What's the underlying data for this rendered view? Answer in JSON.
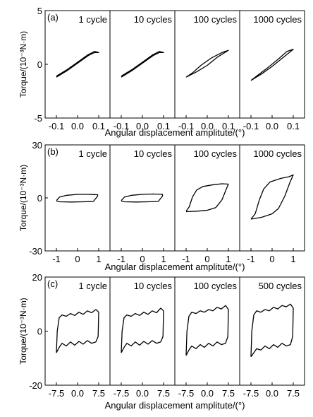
{
  "y_axis_label": "Torque/(10⁻³N·m)",
  "chart_data": [
    {
      "type": "line",
      "panel_label": "(a)",
      "xlabel": "Angular displacement amplitute/(°)",
      "ylim": [
        -5,
        5
      ],
      "y_ticks": [
        "5",
        "0",
        "-5"
      ],
      "xlim": [
        -0.12,
        0.12
      ],
      "x_ticks": [
        "-0.1",
        "0.0",
        "0.1"
      ],
      "subplots": [
        {
          "title": "1 cycle",
          "points": [
            [
              -0.1,
              -1.1
            ],
            [
              -0.05,
              -0.5
            ],
            [
              0.0,
              0.2
            ],
            [
              0.05,
              0.9
            ],
            [
              0.08,
              1.2
            ],
            [
              0.1,
              1.1
            ],
            [
              0.08,
              1.1
            ],
            [
              0.05,
              0.8
            ],
            [
              0.0,
              0.1
            ],
            [
              -0.05,
              -0.6
            ],
            [
              -0.1,
              -1.2
            ]
          ]
        },
        {
          "title": "10 cycles",
          "points": [
            [
              -0.1,
              -1.1
            ],
            [
              -0.05,
              -0.5
            ],
            [
              0.0,
              0.2
            ],
            [
              0.05,
              0.9
            ],
            [
              0.08,
              1.2
            ],
            [
              0.1,
              1.1
            ],
            [
              0.08,
              1.1
            ],
            [
              0.05,
              0.8
            ],
            [
              0.0,
              0.1
            ],
            [
              -0.05,
              -0.6
            ],
            [
              -0.1,
              -1.2
            ]
          ]
        },
        {
          "title": "100 cycles",
          "points": [
            [
              -0.1,
              -1.2
            ],
            [
              -0.05,
              -0.7
            ],
            [
              0.0,
              -0.1
            ],
            [
              0.05,
              0.7
            ],
            [
              0.1,
              1.3
            ],
            [
              0.07,
              1.1
            ],
            [
              0.02,
              0.6
            ],
            [
              -0.03,
              -0.1
            ],
            [
              -0.07,
              -0.8
            ],
            [
              -0.1,
              -1.2
            ]
          ]
        },
        {
          "title": "1000 cycles",
          "points": [
            [
              -0.1,
              -1.5
            ],
            [
              -0.05,
              -0.9
            ],
            [
              0.0,
              -0.2
            ],
            [
              0.05,
              0.6
            ],
            [
              0.1,
              1.4
            ],
            [
              0.07,
              1.2
            ],
            [
              0.03,
              0.5
            ],
            [
              -0.02,
              -0.3
            ],
            [
              -0.06,
              -0.9
            ],
            [
              -0.1,
              -1.5
            ]
          ]
        }
      ]
    },
    {
      "type": "line",
      "panel_label": "(b)",
      "xlabel": "Angular displacement amplitute/(°)",
      "ylim": [
        -30,
        30
      ],
      "y_ticks": [
        "30",
        "0",
        "-30"
      ],
      "xlim": [
        -1.2,
        1.2
      ],
      "x_ticks": [
        "-1",
        "0",
        "1"
      ],
      "subplots": [
        {
          "title": "1 cycle",
          "points": [
            [
              -1.0,
              -1.5
            ],
            [
              -0.85,
              0.5
            ],
            [
              -0.5,
              1.5
            ],
            [
              0.0,
              2.0
            ],
            [
              0.5,
              2.0
            ],
            [
              0.95,
              1.8
            ],
            [
              0.95,
              1.0
            ],
            [
              0.75,
              -2.0
            ],
            [
              0.3,
              -2.2
            ],
            [
              -0.3,
              -2.3
            ],
            [
              -0.85,
              -2.2
            ],
            [
              -1.0,
              -1.8
            ]
          ]
        },
        {
          "title": "10 cycles",
          "points": [
            [
              -1.0,
              -1.5
            ],
            [
              -0.85,
              0.5
            ],
            [
              -0.5,
              1.5
            ],
            [
              0.0,
              2.0
            ],
            [
              0.5,
              2.2
            ],
            [
              0.95,
              2.0
            ],
            [
              0.95,
              1.0
            ],
            [
              0.75,
              -2.0
            ],
            [
              0.3,
              -2.2
            ],
            [
              -0.3,
              -2.3
            ],
            [
              -0.85,
              -2.2
            ],
            [
              -1.0,
              -1.8
            ]
          ]
        },
        {
          "title": "100 cycles",
          "points": [
            [
              -1.0,
              -7.5
            ],
            [
              -0.85,
              -5
            ],
            [
              -0.7,
              0.5
            ],
            [
              -0.5,
              4.5
            ],
            [
              -0.2,
              6.5
            ],
            [
              0.3,
              7.5
            ],
            [
              0.7,
              8
            ],
            [
              1.0,
              7.8
            ],
            [
              0.9,
              5
            ],
            [
              0.7,
              -1
            ],
            [
              0.4,
              -5.5
            ],
            [
              0.0,
              -7
            ],
            [
              -0.5,
              -7.5
            ],
            [
              -1.0,
              -7.8
            ]
          ]
        },
        {
          "title": "1000 cycles",
          "points": [
            [
              -1.0,
              -12
            ],
            [
              -0.8,
              -9
            ],
            [
              -0.6,
              -1
            ],
            [
              -0.4,
              5
            ],
            [
              -0.1,
              9
            ],
            [
              0.4,
              11
            ],
            [
              0.8,
              12
            ],
            [
              1.0,
              13
            ],
            [
              0.85,
              9
            ],
            [
              0.6,
              1
            ],
            [
              0.3,
              -6
            ],
            [
              0.0,
              -9
            ],
            [
              -0.5,
              -11
            ],
            [
              -1.0,
              -12
            ]
          ]
        }
      ]
    },
    {
      "type": "line",
      "panel_label": "(c)",
      "xlabel": "Angular displacement amplitute/(°)",
      "ylim": [
        -20,
        20
      ],
      "y_ticks": [
        "20",
        "0",
        "-20"
      ],
      "xlim": [
        -9,
        9
      ],
      "x_ticks": [
        "-7.5",
        "0.0",
        "7.5"
      ],
      "subplots": [
        {
          "title": "1 cycle",
          "points": [
            [
              -7.5,
              -8
            ],
            [
              -7.2,
              0
            ],
            [
              -6.5,
              5
            ],
            [
              -5.5,
              6
            ],
            [
              -4,
              5.5
            ],
            [
              -2.5,
              6.5
            ],
            [
              -1,
              5.8
            ],
            [
              0.5,
              7
            ],
            [
              2,
              6.2
            ],
            [
              3.5,
              7.5
            ],
            [
              5,
              6.8
            ],
            [
              6.5,
              8
            ],
            [
              7.5,
              7
            ],
            [
              7.3,
              -2
            ],
            [
              6.5,
              -4
            ],
            [
              5,
              -4.5
            ],
            [
              3.5,
              -3.5
            ],
            [
              2,
              -4.8
            ],
            [
              0.5,
              -3.8
            ],
            [
              -1,
              -5.2
            ],
            [
              -2.5,
              -4
            ],
            [
              -4,
              -5.5
            ],
            [
              -5.5,
              -4.5
            ],
            [
              -6.5,
              -6
            ],
            [
              -7.5,
              -8
            ]
          ]
        },
        {
          "title": "10 cycles",
          "points": [
            [
              -7.5,
              -8
            ],
            [
              -7.2,
              0
            ],
            [
              -6.5,
              5
            ],
            [
              -5.5,
              6
            ],
            [
              -4,
              5.5
            ],
            [
              -2.5,
              6.5
            ],
            [
              -1,
              5.8
            ],
            [
              0.5,
              7
            ],
            [
              2,
              6.2
            ],
            [
              3.5,
              7.5
            ],
            [
              5,
              6.8
            ],
            [
              6.5,
              8.5
            ],
            [
              7.5,
              7.5
            ],
            [
              7.3,
              -2
            ],
            [
              6.5,
              -4
            ],
            [
              5,
              -4.5
            ],
            [
              3.5,
              -3.5
            ],
            [
              2,
              -4.8
            ],
            [
              0.5,
              -3.8
            ],
            [
              -1,
              -5.2
            ],
            [
              -2.5,
              -4
            ],
            [
              -4,
              -5.5
            ],
            [
              -5.5,
              -4.5
            ],
            [
              -6.5,
              -6
            ],
            [
              -7.5,
              -8
            ]
          ]
        },
        {
          "title": "100 cycles",
          "points": [
            [
              -7.5,
              -9
            ],
            [
              -7.2,
              0
            ],
            [
              -6.5,
              5.5
            ],
            [
              -5.5,
              7
            ],
            [
              -4,
              6.5
            ],
            [
              -2.5,
              7.5
            ],
            [
              -1,
              7
            ],
            [
              0.5,
              8
            ],
            [
              2,
              7.5
            ],
            [
              3.5,
              8.8
            ],
            [
              5,
              8.2
            ],
            [
              6.5,
              9.5
            ],
            [
              7.5,
              8
            ],
            [
              7.3,
              -2
            ],
            [
              6.5,
              -4.5
            ],
            [
              5,
              -5
            ],
            [
              3.5,
              -4
            ],
            [
              2,
              -5.5
            ],
            [
              0.5,
              -4.5
            ],
            [
              -1,
              -6
            ],
            [
              -2.5,
              -5
            ],
            [
              -4,
              -6.5
            ],
            [
              -5.5,
              -5.5
            ],
            [
              -6.5,
              -7
            ],
            [
              -7.5,
              -9
            ]
          ]
        },
        {
          "title": "500 cycles",
          "points": [
            [
              -7.5,
              -9.5
            ],
            [
              -7.2,
              0
            ],
            [
              -6.5,
              6
            ],
            [
              -5.5,
              7.5
            ],
            [
              -4,
              7
            ],
            [
              -2.5,
              8
            ],
            [
              -1,
              7.5
            ],
            [
              0.5,
              8.8
            ],
            [
              2,
              8.2
            ],
            [
              3.5,
              9.5
            ],
            [
              5,
              9
            ],
            [
              6.5,
              10
            ],
            [
              7.5,
              8.5
            ],
            [
              7.3,
              -2
            ],
            [
              6.5,
              -5
            ],
            [
              5,
              -5.5
            ],
            [
              3.5,
              -4.5
            ],
            [
              2,
              -6
            ],
            [
              0.5,
              -5
            ],
            [
              -1,
              -6.5
            ],
            [
              -2.5,
              -5.5
            ],
            [
              -4,
              -7
            ],
            [
              -5.5,
              -6.5
            ],
            [
              -6.5,
              -8
            ],
            [
              -7.5,
              -9.5
            ]
          ]
        }
      ]
    }
  ]
}
